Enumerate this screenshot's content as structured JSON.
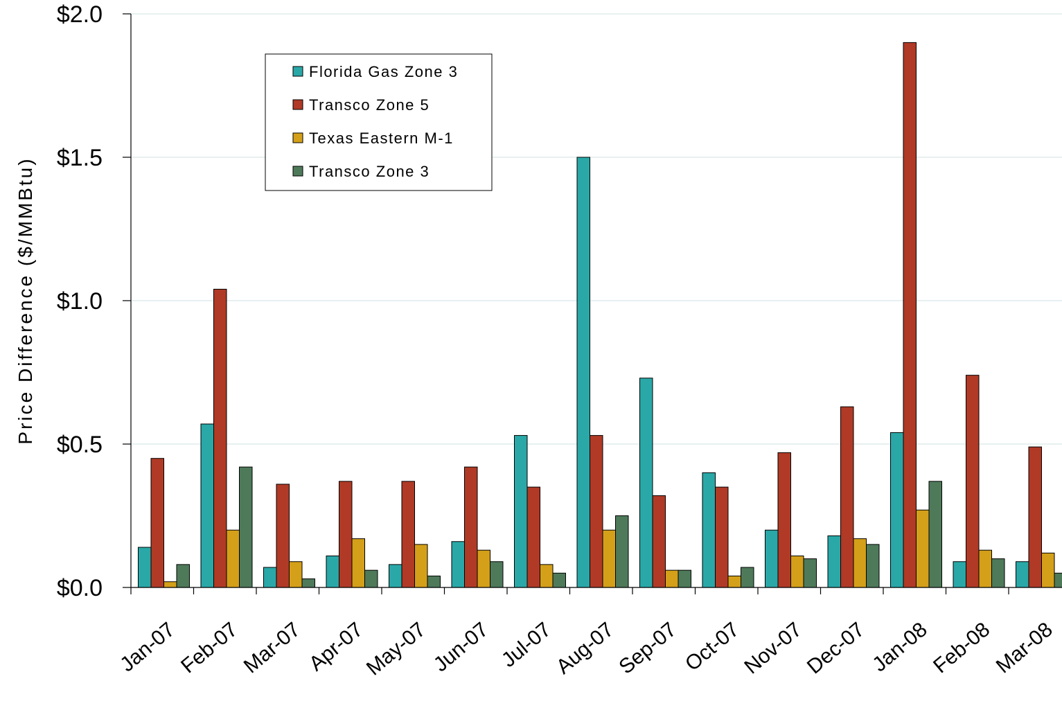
{
  "chart_data": {
    "type": "bar",
    "title": "",
    "xlabel": "",
    "ylabel": "Price Difference  ($/MMBtu)",
    "ylim": [
      0,
      2.0
    ],
    "yticks": [
      0.0,
      0.5,
      1.0,
      1.5,
      2.0
    ],
    "ytick_labels": [
      "$0.0",
      "$0.5",
      "$1.0",
      "$1.5",
      "$2.0"
    ],
    "grid": "horizontal",
    "legend_position": "top-left",
    "categories": [
      "Jan-07",
      "Feb-07",
      "Mar-07",
      "Apr-07",
      "May-07",
      "Jun-07",
      "Jul-07",
      "Aug-07",
      "Sep-07",
      "Oct-07",
      "Nov-07",
      "Dec-07",
      "Jan-08",
      "Feb-08",
      "Mar-08"
    ],
    "series": [
      {
        "name": "Florida Gas Zone 3",
        "color": "#2aa8a8",
        "values": [
          0.14,
          0.57,
          0.07,
          0.11,
          0.08,
          0.16,
          0.53,
          1.5,
          0.73,
          0.4,
          0.2,
          0.18,
          0.54,
          0.09,
          0.09
        ]
      },
      {
        "name": "Transco Zone 5",
        "color": "#b03a26",
        "values": [
          0.45,
          1.04,
          0.36,
          0.37,
          0.37,
          0.42,
          0.35,
          0.53,
          0.32,
          0.35,
          0.47,
          0.63,
          1.9,
          0.74,
          0.49
        ]
      },
      {
        "name": "Texas Eastern M-1",
        "color": "#d4a01a",
        "values": [
          0.02,
          0.2,
          0.09,
          0.17,
          0.15,
          0.13,
          0.08,
          0.2,
          0.06,
          0.04,
          0.11,
          0.17,
          0.27,
          0.13,
          0.12
        ]
      },
      {
        "name": "Transco Zone 3",
        "color": "#4e7a5a",
        "values": [
          0.08,
          0.42,
          0.03,
          0.06,
          0.04,
          0.09,
          0.05,
          0.25,
          0.06,
          0.07,
          0.1,
          0.15,
          0.37,
          0.1,
          0.05
        ]
      }
    ]
  }
}
